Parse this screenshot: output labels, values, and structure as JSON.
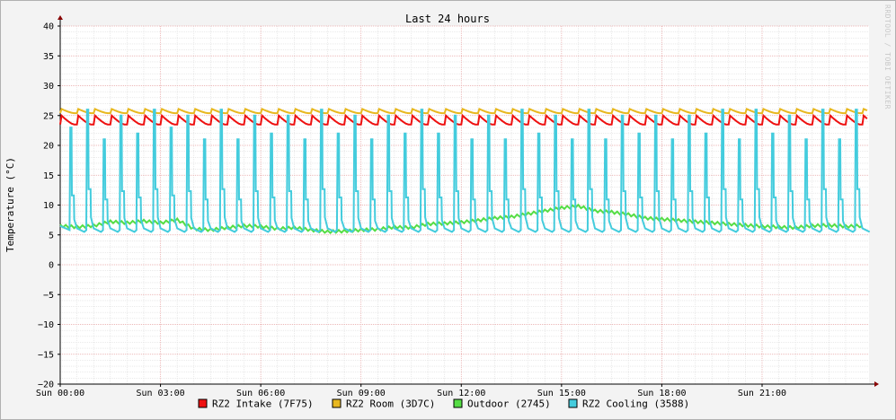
{
  "chart_data": {
    "type": "line",
    "title": "Last 24 hours",
    "ylabel": "Temperature (°C)",
    "watermark": "RRDTOOL / TOBI OETIKER",
    "ylim": [
      -20,
      40
    ],
    "yticks": [
      40,
      35,
      30,
      25,
      20,
      15,
      10,
      5,
      0,
      -5,
      -10,
      -15,
      -20
    ],
    "xlim_hours": [
      0,
      24.2
    ],
    "xticks": [
      {
        "hour": 0,
        "label": "Sun 00:00"
      },
      {
        "hour": 3,
        "label": "Sun 03:00"
      },
      {
        "hour": 6,
        "label": "Sun 06:00"
      },
      {
        "hour": 9,
        "label": "Sun 09:00"
      },
      {
        "hour": 12,
        "label": "Sun 12:00"
      },
      {
        "hour": 15,
        "label": "Sun 15:00"
      },
      {
        "hour": 18,
        "label": "Sun 18:00"
      },
      {
        "hour": 21,
        "label": "Sun 21:00"
      }
    ],
    "grid": true,
    "legend_position": "bottom",
    "series": [
      {
        "name": "RZ2 Intake (7F75)",
        "color": "#ee1111",
        "cycle_hours": 0.5,
        "x": [
          0,
          0.5,
          1,
          1.5,
          2,
          2.5,
          3,
          3.5,
          4,
          4.5,
          5,
          5.5,
          6,
          6.5,
          7,
          7.5,
          8,
          8.5,
          9,
          9.5,
          10,
          10.5,
          11,
          11.5,
          12,
          12.5,
          13,
          13.5,
          14,
          14.5,
          15,
          15.5,
          16,
          16.5,
          17,
          17.5,
          18,
          18.5,
          19,
          19.5,
          20,
          20.5,
          21,
          21.5,
          22,
          22.5,
          23,
          23.5,
          24
        ],
        "low": [
          23.5,
          23.5,
          23.5,
          23.5,
          23.5,
          23.5,
          23.5,
          23.5,
          23.5,
          23.5,
          23.5,
          23.5,
          23.5,
          23.5,
          23.5,
          23.5,
          23.5,
          23.5,
          23.5,
          23.5,
          23.5,
          23.5,
          23.5,
          23.5,
          23.5,
          23.5,
          23.5,
          23.5,
          23.5,
          23.5,
          23.5,
          23.5,
          23.5,
          23.5,
          23.5,
          23.5,
          23.5,
          23.5,
          23.5,
          23.5,
          23.5,
          23.5,
          23.5,
          23.5,
          23.5,
          23.5,
          23.5,
          23.5,
          23.5
        ],
        "high": [
          25,
          25,
          25,
          25,
          25,
          25,
          25,
          25,
          25,
          25,
          25,
          25,
          25,
          25,
          25,
          25,
          25,
          25,
          25,
          25,
          25,
          25,
          25,
          25,
          25,
          25,
          25,
          25,
          25,
          25,
          25,
          25,
          25,
          25,
          25,
          25,
          25,
          25,
          25,
          25,
          25,
          25,
          25,
          25,
          25,
          25,
          25,
          25,
          25
        ]
      },
      {
        "name": "RZ2 Room (3D7C)",
        "color": "#e8b820",
        "cycle_hours": 0.5,
        "x": [
          0,
          0.5,
          1,
          1.5,
          2,
          2.5,
          3,
          3.5,
          4,
          4.5,
          5,
          5.5,
          6,
          6.5,
          7,
          7.5,
          8,
          8.5,
          9,
          9.5,
          10,
          10.5,
          11,
          11.5,
          12,
          12.5,
          13,
          13.5,
          14,
          14.5,
          15,
          15.5,
          16,
          16.5,
          17,
          17.5,
          18,
          18.5,
          19,
          19.5,
          20,
          20.5,
          21,
          21.5,
          22,
          22.5,
          23,
          23.5,
          24
        ],
        "low": [
          25.4,
          25.4,
          25.4,
          25.4,
          25.4,
          25.4,
          25.4,
          25.4,
          25.4,
          25.4,
          25.4,
          25.4,
          25.4,
          25.4,
          25.4,
          25.4,
          25.4,
          25.4,
          25.4,
          25.4,
          25.4,
          25.4,
          25.4,
          25.4,
          25.4,
          25.4,
          25.4,
          25.4,
          25.4,
          25.4,
          25.4,
          25.4,
          25.4,
          25.4,
          25.4,
          25.4,
          25.4,
          25.4,
          25.4,
          25.4,
          25.4,
          25.4,
          25.4,
          25.4,
          25.4,
          25.4,
          25.4,
          25.4,
          25.4
        ],
        "high": [
          26.1,
          26.1,
          26.1,
          26.1,
          26.1,
          26.1,
          26.1,
          26.1,
          26.1,
          26.1,
          26.1,
          26.1,
          26.1,
          26.1,
          26.1,
          26.1,
          26.1,
          26.1,
          26.1,
          26.1,
          26.1,
          26.1,
          26.1,
          26.1,
          26.1,
          26.1,
          26.1,
          26.1,
          26.1,
          26.1,
          26.1,
          26.1,
          26.1,
          26.1,
          26.1,
          26.1,
          26.1,
          26.1,
          26.1,
          26.1,
          26.1,
          26.1,
          26.1,
          26.1,
          26.1,
          26.1,
          26.1,
          26.1,
          26.1
        ]
      },
      {
        "name": "Outdoor (2745)",
        "color": "#55dd44",
        "x": [
          0,
          0.5,
          1,
          1.5,
          2,
          2.5,
          3,
          3.5,
          4,
          4.5,
          5,
          5.5,
          6,
          6.5,
          7,
          7.5,
          8,
          8.5,
          9,
          9.5,
          10,
          10.5,
          11,
          11.5,
          12,
          12.5,
          13,
          13.5,
          14,
          14.5,
          15,
          15.5,
          16,
          16.5,
          17,
          17.5,
          18,
          18.5,
          19,
          19.5,
          20,
          20.5,
          21,
          21.5,
          22,
          22.5,
          23,
          23.5,
          24
        ],
        "values": [
          6.5,
          6.3,
          6.5,
          7.2,
          7.0,
          7.3,
          7.0,
          7.5,
          6.0,
          5.8,
          6.2,
          6.5,
          6.4,
          6.0,
          6.2,
          5.8,
          5.5,
          5.6,
          5.8,
          5.9,
          6.3,
          6.2,
          6.8,
          6.9,
          7.1,
          7.4,
          7.8,
          8.0,
          8.5,
          9.0,
          9.5,
          9.8,
          9.0,
          8.8,
          8.4,
          7.8,
          7.6,
          7.4,
          7.2,
          7.0,
          6.8,
          6.6,
          6.4,
          6.3,
          6.2,
          6.5,
          6.6,
          6.4,
          6.5
        ]
      },
      {
        "name": "RZ2 Cooling (3588)",
        "color": "#44ccdd",
        "baseline": 5.5,
        "x": [
          0.3,
          0.8,
          1.3,
          1.8,
          2.3,
          2.8,
          3.3,
          3.8,
          4.3,
          4.8,
          5.3,
          5.8,
          6.3,
          6.8,
          7.3,
          7.8,
          8.3,
          8.8,
          9.3,
          9.8,
          10.3,
          10.8,
          11.3,
          11.8,
          12.3,
          12.8,
          13.3,
          13.8,
          14.3,
          14.8,
          15.3,
          15.8,
          16.3,
          16.8,
          17.3,
          17.8,
          18.3,
          18.8,
          19.3,
          19.8,
          20.3,
          20.8,
          21.3,
          21.8,
          22.3,
          22.8,
          23.3,
          23.8
        ],
        "peaks": [
          23,
          26,
          21,
          25,
          22,
          26,
          23,
          25,
          21,
          26,
          21,
          25,
          22,
          25,
          21,
          26,
          22,
          25,
          21,
          25,
          22,
          26,
          22,
          25,
          21,
          25,
          21,
          26,
          22,
          25,
          21,
          26,
          21,
          25,
          22,
          25,
          21,
          25,
          22,
          26,
          21,
          26,
          22,
          25,
          21,
          26,
          21,
          26
        ]
      }
    ]
  }
}
